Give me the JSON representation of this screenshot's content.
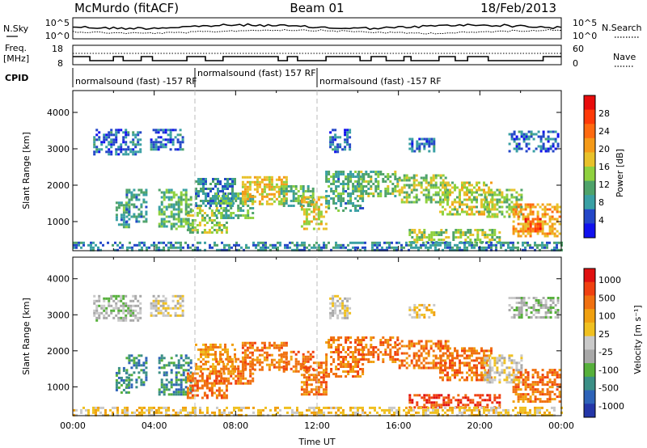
{
  "header": {
    "station": "McMurdo (fitACF)",
    "beam": "Beam 01",
    "date": "18/Feb/2013"
  },
  "panels": {
    "nsky_label": "N.Sky",
    "nsearch_label": "N.Search",
    "freq_label_1": "Freq.",
    "freq_label_2": "[MHz]",
    "nave_label": "Nave",
    "cpid_label": "CPID",
    "nsky_ticks": [
      "10^5",
      "10^0"
    ],
    "nsearch_ticks": [
      "10^5",
      "10^0"
    ],
    "freq_ticks": [
      "18",
      "8"
    ],
    "nave_ticks": [
      "60",
      "0"
    ]
  },
  "cpid": [
    {
      "label": "normalsound (fast) -157 RF",
      "start_h": 0,
      "end_h": 6
    },
    {
      "label": "normalsound (fast) 157 RF",
      "start_h": 6,
      "end_h": 12
    },
    {
      "label": "normalsound (fast) -157 RF",
      "start_h": 12,
      "end_h": 24
    }
  ],
  "colorbars": {
    "power": {
      "title": "Power [dB]",
      "ticks": [
        "4",
        "8",
        "12",
        "16",
        "20",
        "24",
        "28"
      ],
      "colors": [
        "#1111ee",
        "#2447c8",
        "#3aa0a4",
        "#4fa36a",
        "#8fd13f",
        "#e8c12a",
        "#f59a18",
        "#ff6a10",
        "#ff3a08",
        "#e80c0c"
      ]
    },
    "velocity": {
      "title": "Velocity [m s⁻¹]",
      "ticks": [
        "1000",
        "500",
        "100",
        "25",
        "-25",
        "-100",
        "-500",
        "-1000"
      ],
      "colors": [
        "#2436a8",
        "#2e63b8",
        "#3b8f86",
        "#56b03b",
        "#a8a8a8",
        "#c9c9c9",
        "#f0c020",
        "#f0a010",
        "#f07010",
        "#f04010",
        "#e01010"
      ]
    }
  },
  "chart_data": [
    {
      "type": "heatmap",
      "name": "power",
      "ylabel": "Slant Range [km]",
      "xlim": [
        0,
        24
      ],
      "ylim": [
        200,
        4600
      ],
      "yticks": [
        1000,
        2000,
        3000,
        4000
      ],
      "clabel": "Power [dB]",
      "clim": [
        0,
        32
      ],
      "regions": [
        {
          "t0": 1.0,
          "t1": 3.3,
          "r0": 2850,
          "r1": 3550,
          "level": 6
        },
        {
          "t0": 3.8,
          "t1": 5.4,
          "r0": 2950,
          "r1": 3550,
          "level": 6
        },
        {
          "t0": 2.1,
          "t1": 2.8,
          "r0": 850,
          "r1": 1550,
          "level": 10
        },
        {
          "t0": 2.6,
          "t1": 3.6,
          "r0": 1000,
          "r1": 1900,
          "level": 9
        },
        {
          "t0": 4.2,
          "t1": 5.8,
          "r0": 800,
          "r1": 1900,
          "level": 12
        },
        {
          "t0": 5.6,
          "t1": 7.6,
          "r0": 700,
          "r1": 1400,
          "level": 14
        },
        {
          "t0": 6.0,
          "t1": 8.0,
          "r0": 1400,
          "r1": 2200,
          "level": 8
        },
        {
          "t0": 7.0,
          "t1": 8.8,
          "r0": 1100,
          "r1": 1800,
          "level": 11
        },
        {
          "t0": 8.3,
          "t1": 10.5,
          "r0": 1500,
          "r1": 2250,
          "level": 18
        },
        {
          "t0": 10.2,
          "t1": 11.8,
          "r0": 1400,
          "r1": 2000,
          "level": 12
        },
        {
          "t0": 11.2,
          "t1": 12.5,
          "r0": 800,
          "r1": 1700,
          "level": 17
        },
        {
          "t0": 12.4,
          "t1": 14.2,
          "r0": 1300,
          "r1": 2400,
          "level": 10
        },
        {
          "t0": 14.0,
          "t1": 16.0,
          "r0": 1700,
          "r1": 2400,
          "level": 13
        },
        {
          "t0": 16.0,
          "t1": 18.4,
          "r0": 1500,
          "r1": 2300,
          "level": 14
        },
        {
          "t0": 18.0,
          "t1": 20.6,
          "r0": 1200,
          "r1": 2100,
          "level": 16
        },
        {
          "t0": 20.2,
          "t1": 22.0,
          "r0": 1100,
          "r1": 1900,
          "level": 14
        },
        {
          "t0": 21.6,
          "t1": 23.9,
          "r0": 600,
          "r1": 1500,
          "level": 20
        },
        {
          "t0": 22.2,
          "t1": 23.0,
          "r0": 700,
          "r1": 1100,
          "level": 27
        },
        {
          "t0": 12.6,
          "t1": 13.6,
          "r0": 2900,
          "r1": 3550,
          "level": 6
        },
        {
          "t0": 16.5,
          "t1": 17.8,
          "r0": 2900,
          "r1": 3300,
          "level": 6
        },
        {
          "t0": 21.4,
          "t1": 23.8,
          "r0": 2900,
          "r1": 3500,
          "level": 6
        },
        {
          "t0": 16.5,
          "t1": 21.0,
          "r0": 450,
          "r1": 800,
          "level": 14
        },
        {
          "t0": 0.0,
          "t1": 24.0,
          "r0": 200,
          "r1": 450,
          "level": 8
        }
      ]
    },
    {
      "type": "heatmap",
      "name": "velocity",
      "ylabel": "Slant Range [km]",
      "xlabel": "Time UT",
      "xlim": [
        0,
        24
      ],
      "ylim": [
        200,
        4600
      ],
      "yticks": [
        1000,
        2000,
        3000,
        4000
      ],
      "xticks": [
        "00:00",
        "04:00",
        "08:00",
        "12:00",
        "16:00",
        "20:00",
        "00:00"
      ],
      "clabel": "Velocity [m s⁻¹]",
      "regions": [
        {
          "t0": 1.0,
          "t1": 3.3,
          "r0": 2850,
          "r1": 3550,
          "cls": 4
        },
        {
          "t0": 3.8,
          "t1": 5.4,
          "r0": 2950,
          "r1": 3550,
          "cls": 5
        },
        {
          "t0": 2.1,
          "t1": 2.8,
          "r0": 850,
          "r1": 1550,
          "cls": 2
        },
        {
          "t0": 2.6,
          "t1": 3.6,
          "r0": 1000,
          "r1": 1900,
          "cls": 2
        },
        {
          "t0": 4.2,
          "t1": 5.8,
          "r0": 800,
          "r1": 1900,
          "cls": 2
        },
        {
          "t0": 5.6,
          "t1": 7.6,
          "r0": 700,
          "r1": 1400,
          "cls": 8
        },
        {
          "t0": 6.0,
          "t1": 8.0,
          "r0": 1400,
          "r1": 2200,
          "cls": 7
        },
        {
          "t0": 7.0,
          "t1": 8.8,
          "r0": 1100,
          "r1": 1800,
          "cls": 8
        },
        {
          "t0": 8.3,
          "t1": 10.5,
          "r0": 1500,
          "r1": 2250,
          "cls": 8
        },
        {
          "t0": 10.2,
          "t1": 11.8,
          "r0": 1400,
          "r1": 2000,
          "cls": 8
        },
        {
          "t0": 11.2,
          "t1": 12.5,
          "r0": 800,
          "r1": 1700,
          "cls": 8
        },
        {
          "t0": 12.4,
          "t1": 14.2,
          "r0": 1300,
          "r1": 2400,
          "cls": 8
        },
        {
          "t0": 14.0,
          "t1": 16.0,
          "r0": 1700,
          "r1": 2400,
          "cls": 8
        },
        {
          "t0": 16.0,
          "t1": 18.4,
          "r0": 1500,
          "r1": 2300,
          "cls": 8
        },
        {
          "t0": 18.0,
          "t1": 20.6,
          "r0": 1200,
          "r1": 2100,
          "cls": 8
        },
        {
          "t0": 20.2,
          "t1": 22.0,
          "r0": 1100,
          "r1": 1900,
          "cls": 5
        },
        {
          "t0": 21.6,
          "t1": 23.9,
          "r0": 600,
          "r1": 1500,
          "cls": 8
        },
        {
          "t0": 12.6,
          "t1": 13.6,
          "r0": 2900,
          "r1": 3550,
          "cls": 5
        },
        {
          "t0": 16.5,
          "t1": 17.8,
          "r0": 2900,
          "r1": 3300,
          "cls": 6
        },
        {
          "t0": 21.4,
          "t1": 23.8,
          "r0": 2900,
          "r1": 3500,
          "cls": 4
        },
        {
          "t0": 16.5,
          "t1": 21.0,
          "r0": 450,
          "r1": 800,
          "cls": 9
        },
        {
          "t0": 0.0,
          "t1": 24.0,
          "r0": 200,
          "r1": 450,
          "cls": 6
        }
      ]
    }
  ]
}
